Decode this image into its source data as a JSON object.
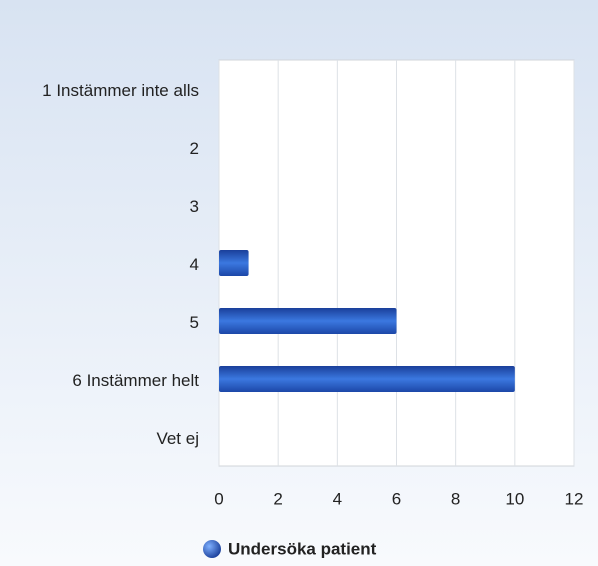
{
  "chart_data": {
    "type": "bar",
    "orientation": "horizontal",
    "categories": [
      "1 Instämmer inte alls",
      "2",
      "3",
      "4",
      "5",
      "6 Instämmer helt",
      "Vet ej"
    ],
    "series": [
      {
        "name": "Undersöka patient",
        "color": "#2a5cc0",
        "values": [
          0,
          0,
          0,
          1,
          6,
          10,
          0
        ]
      }
    ],
    "xlim": [
      0,
      12
    ],
    "xticks": [
      0,
      2,
      4,
      6,
      8,
      10,
      12
    ],
    "grid": true,
    "legend": "bottom"
  }
}
